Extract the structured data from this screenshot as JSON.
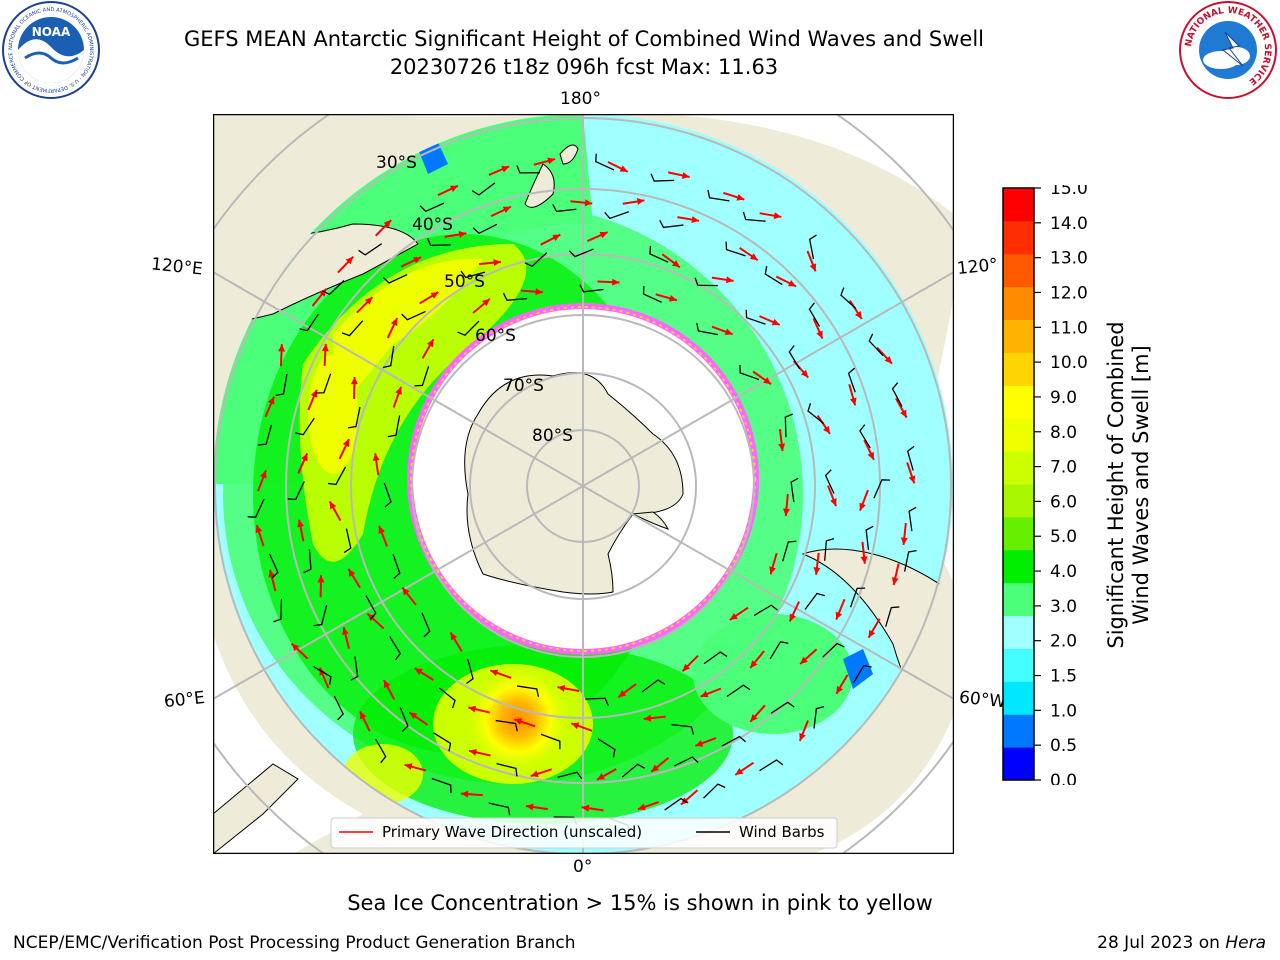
{
  "header": {
    "title_line1": "GEFS MEAN Antarctic Significant Height of Combined Wind Waves and Swell",
    "title_line2": "20230726 t18z 096h fcst   Max: 11.63"
  },
  "logos": {
    "noaa_text": "NOAA",
    "noaa_ring": "NATIONAL OCEANIC AND ATMOSPHERIC ADMINISTRATION · U.S. DEPARTMENT OF COMMERCE",
    "nws_ring": "NATIONAL WEATHER SERVICE"
  },
  "map": {
    "longitude_labels": {
      "top": "180°",
      "left_upper": "120°E",
      "right_upper": "120°",
      "left_lower": "60°E",
      "right_lower": "60°W",
      "bottom": "0°"
    },
    "latitude_labels": [
      "30°S",
      "40°S",
      "50°S",
      "60°S",
      "70°S",
      "80°S"
    ],
    "legend": {
      "wave_direction": "Primary Wave Direction (unscaled)",
      "wind_barbs": "Wind Barbs"
    },
    "colors": {
      "land": "#efebd9",
      "ocean_mask": "#ffffff",
      "grid": "#b9b9b9",
      "arrow": "#ff0000",
      "barb": "#000000"
    }
  },
  "colorbar": {
    "title_line1": "Significant Height of Combined",
    "title_line2": "Wind Waves and Swell [m]",
    "ticks": [
      "15.0",
      "14.0",
      "13.0",
      "12.0",
      "11.0",
      "10.0",
      "9.0",
      "8.0",
      "7.0",
      "6.0",
      "5.0",
      "4.0",
      "3.0",
      "2.0",
      "1.5",
      "1.0",
      "0.5",
      "0.0"
    ],
    "colors_bottom_to_top": [
      "#0000ff",
      "#0078ff",
      "#00e8ff",
      "#44ffff",
      "#a0ffff",
      "#4cff7a",
      "#00ee00",
      "#66f000",
      "#aaf500",
      "#ccff00",
      "#eeff00",
      "#ffff00",
      "#ffd400",
      "#ffb400",
      "#ff8c00",
      "#ff5a00",
      "#ff2d00",
      "#ff0000"
    ]
  },
  "footer": {
    "ice_note": "Sea Ice Concentration > 15% is shown in pink to yellow",
    "branch": "NCEP/EMC/Verification Post Processing Product Generation Branch",
    "date": "28 Jul 2023 on ",
    "machine": "Hera"
  }
}
